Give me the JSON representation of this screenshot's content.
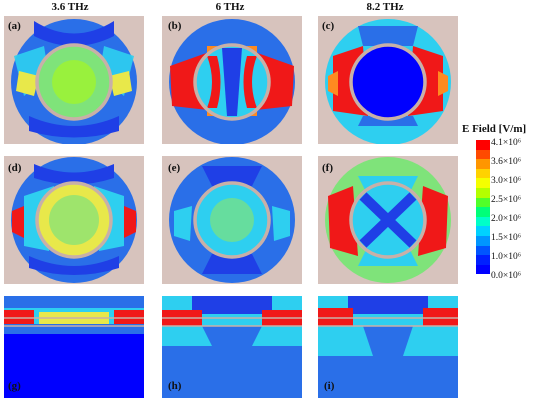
{
  "columns": [
    "3.6 THz",
    "6 THz",
    "8.2 THz"
  ],
  "panels": {
    "a": "(a)",
    "b": "(b)",
    "c": "(c)",
    "d": "(d)",
    "e": "(e)",
    "f": "(f)",
    "g": "(g)",
    "h": "(h)",
    "i": "(i)"
  },
  "legend": {
    "title": "E Field [V/m]",
    "ticks": [
      "4.1×10⁶",
      "3.6×10⁶",
      "3.0×10⁶",
      "2.5×10⁶",
      "2.0×10⁶",
      "1.5×10⁶",
      "1.0×10⁶",
      "0.0×10⁶"
    ],
    "colors": [
      "#ff0000",
      "#ff4a00",
      "#ff9600",
      "#ffd200",
      "#f5ff00",
      "#b4ff00",
      "#50ff2a",
      "#00ff78",
      "#00ffc8",
      "#00d2ff",
      "#0096ff",
      "#0055ff",
      "#0020ff",
      "#0000ff"
    ]
  },
  "colors": {
    "background": "#d7c3bd",
    "ring": "#c8b0a8",
    "deep_blue": "#1f3fe6",
    "blue": "#2a6fe8",
    "cyan": "#2ecff0",
    "green": "#7fe37a",
    "yellow": "#e8e84a",
    "orange": "#ff8a20",
    "red": "#f01818"
  }
}
